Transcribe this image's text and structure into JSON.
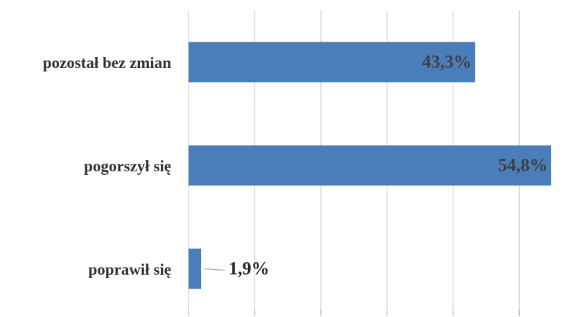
{
  "chart_data": {
    "type": "barh",
    "categories": [
      "pozostał bez zmian",
      "pogorszył się",
      "poprawił się"
    ],
    "values": [
      43.3,
      54.8,
      1.9
    ],
    "value_labels": [
      "43,3%",
      "54,8%",
      "1,9%"
    ],
    "color": "#4a7ebb",
    "xlim": [
      0,
      55
    ],
    "xticks": [
      0,
      10,
      20,
      30,
      40,
      50
    ],
    "grid": true
  }
}
